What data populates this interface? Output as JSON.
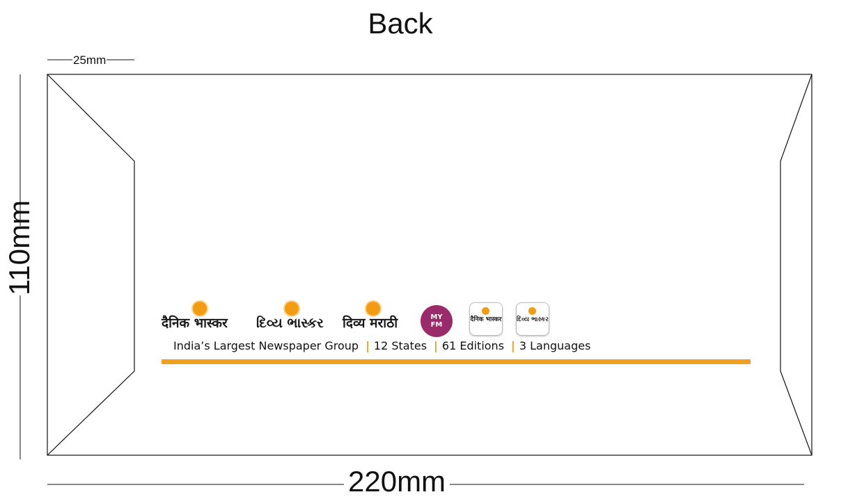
{
  "title": "Back",
  "dimensions": {
    "width_label": "220mm",
    "height_label": "110mm",
    "flap_label": "25mm"
  },
  "logos": {
    "dainik_bhaskar": "दैनिक भास्कर",
    "divya_bhaskar": "દિવ્ય ભાસ્કર",
    "divya_marathi": "दिव्य मराठी",
    "my_fm": "MY FM",
    "app_dainik_bhaskar": "दैनिक भास्कर",
    "app_divya_bhaskar": "દિવ્ય ભાસ્કર"
  },
  "tagline": {
    "group": "India’s Largest Newspaper Group",
    "states": "12 States",
    "editions": "61 Editions",
    "languages": "3 Languages"
  },
  "colors": {
    "accent_orange": "#f0a020",
    "myfm_purple": "#9b2a6a",
    "outline": "#111111"
  }
}
